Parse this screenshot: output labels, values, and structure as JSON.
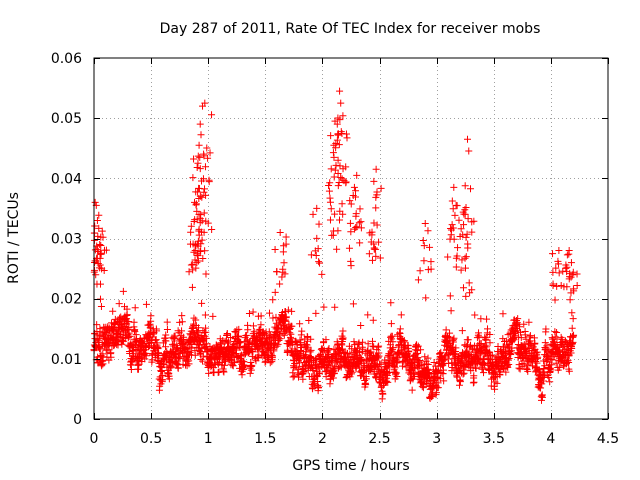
{
  "chart_data": {
    "type": "scatter",
    "title": "Day 287 of 2011, Rate Of TEC Index for receiver mobs",
    "xlabel": "GPS time / hours",
    "ylabel": "ROTI / TECUs",
    "xlim": [
      0,
      4.5
    ],
    "ylim": [
      0,
      0.06
    ],
    "xticks": [
      0,
      0.5,
      1,
      1.5,
      2,
      2.5,
      3,
      3.5,
      4,
      4.5
    ],
    "xtick_labels": [
      "0",
      "0.5",
      "1",
      "1.5",
      "2",
      "2.5",
      "3",
      "3.5",
      "4",
      "4.5"
    ],
    "yticks": [
      0,
      0.01,
      0.02,
      0.03,
      0.04,
      0.05,
      0.06
    ],
    "ytick_labels": [
      "0",
      "0.01",
      "0.02",
      "0.03",
      "0.04",
      "0.05",
      "0.06"
    ],
    "grid": true,
    "marker": "+",
    "color": "#ff0000",
    "series": [
      {
        "name": "ROTI",
        "x_range": [
          0,
          4.2
        ],
        "x_step": 0.00167,
        "typical_low": 0.004,
        "typical_high": 0.018,
        "peaks": [
          {
            "x": 0.01,
            "y": 0.036
          },
          {
            "x": 0.02,
            "y": 0.0355
          },
          {
            "x": 0.03,
            "y": 0.033
          },
          {
            "x": 0.05,
            "y": 0.029
          },
          {
            "x": 0.88,
            "y": 0.036
          },
          {
            "x": 0.9,
            "y": 0.0345
          },
          {
            "x": 0.91,
            "y": 0.0425
          },
          {
            "x": 0.92,
            "y": 0.0455
          },
          {
            "x": 0.93,
            "y": 0.049
          },
          {
            "x": 0.95,
            "y": 0.052
          },
          {
            "x": 0.97,
            "y": 0.0525
          },
          {
            "x": 1.63,
            "y": 0.031
          },
          {
            "x": 1.95,
            "y": 0.035
          },
          {
            "x": 2.1,
            "y": 0.0455
          },
          {
            "x": 2.11,
            "y": 0.0495
          },
          {
            "x": 2.13,
            "y": 0.049
          },
          {
            "x": 2.15,
            "y": 0.0545
          },
          {
            "x": 2.16,
            "y": 0.0525
          },
          {
            "x": 2.28,
            "y": 0.0385
          },
          {
            "x": 2.3,
            "y": 0.0405
          },
          {
            "x": 2.45,
            "y": 0.0395
          },
          {
            "x": 2.47,
            "y": 0.0415
          },
          {
            "x": 2.9,
            "y": 0.0325
          },
          {
            "x": 3.15,
            "y": 0.0385
          },
          {
            "x": 3.17,
            "y": 0.0355
          },
          {
            "x": 3.27,
            "y": 0.0465
          },
          {
            "x": 3.25,
            "y": 0.034
          },
          {
            "x": 4.07,
            "y": 0.028
          },
          {
            "x": 4.16,
            "y": 0.028
          },
          {
            "x": 4.18,
            "y": 0.026
          }
        ]
      }
    ]
  }
}
